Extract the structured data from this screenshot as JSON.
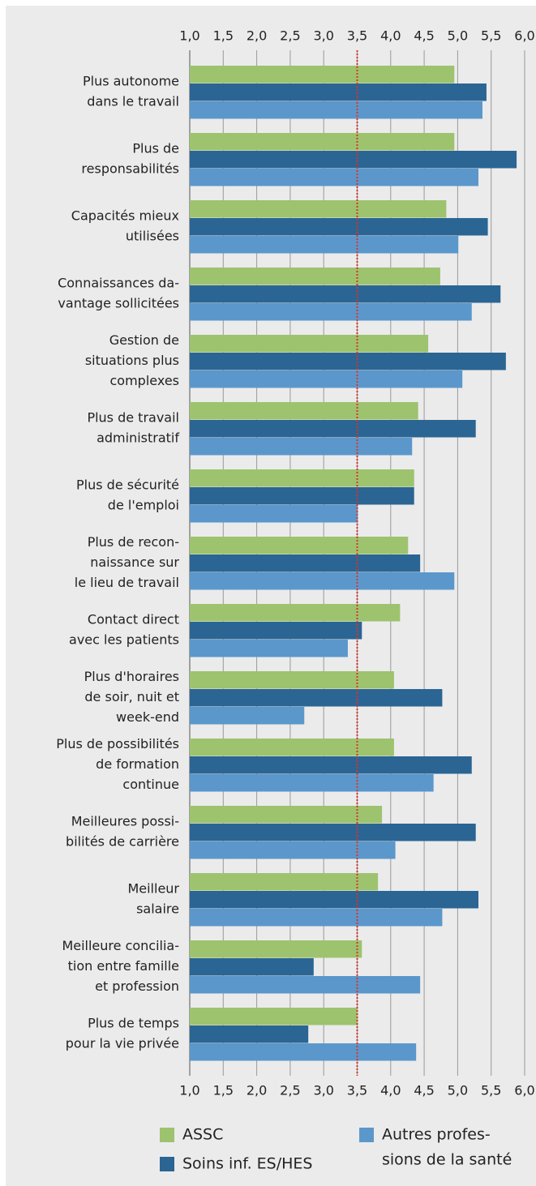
{
  "chart_data": {
    "type": "barh",
    "categories": [
      [
        "Plus autonome",
        "dans le travail"
      ],
      [
        "Plus de",
        "responsabilités"
      ],
      [
        "Capacités mieux",
        "utilisées"
      ],
      [
        "Connaissances da-",
        "vantage sollicitées"
      ],
      [
        "Gestion de",
        "situations plus",
        "complexes"
      ],
      [
        "Plus de travail",
        "administratif"
      ],
      [
        "Plus de sécurité",
        "de l'emploi"
      ],
      [
        "Plus de recon-",
        "naissance sur",
        "le lieu de travail"
      ],
      [
        "Contact direct",
        "avec les patients"
      ],
      [
        "Plus d'horaires",
        "de soir, nuit et",
        "week-end"
      ],
      [
        "Plus de possibilités",
        "de formation",
        "continue"
      ],
      [
        "Meilleures possi-",
        "bilités de carrière"
      ],
      [
        "Meilleur",
        "salaire"
      ],
      [
        "Meilleure concilia-",
        "tion entre famille",
        "et profession"
      ],
      [
        "Plus de temps",
        "pour la vie privée"
      ]
    ],
    "series": [
      {
        "name": [
          "ASSC"
        ],
        "color": "#9dc36e",
        "values": [
          4.95,
          4.95,
          4.83,
          4.74,
          4.56,
          4.41,
          4.35,
          4.26,
          4.14,
          4.05,
          4.05,
          3.87,
          3.81,
          3.57,
          3.51
        ]
      },
      {
        "name": [
          "Soins inf. ES/HES"
        ],
        "color": "#2b6593",
        "values": [
          5.43,
          5.88,
          5.45,
          5.64,
          5.72,
          5.27,
          4.35,
          4.44,
          3.57,
          4.77,
          5.21,
          5.27,
          5.31,
          2.85,
          2.77
        ]
      },
      {
        "name": [
          "Autres profes-",
          "sions de la santé"
        ],
        "color": "#5b97cb",
        "values": [
          5.37,
          5.31,
          5.01,
          5.21,
          5.07,
          4.32,
          3.51,
          4.95,
          3.36,
          2.71,
          4.64,
          4.07,
          4.77,
          4.44,
          4.38
        ]
      }
    ],
    "xlim": [
      1,
      6
    ],
    "xticks": [
      {
        "value": 1,
        "label": "1,0"
      },
      {
        "value": 1.5,
        "label": "1,5"
      },
      {
        "value": 2,
        "label": "2,0"
      },
      {
        "value": 2.5,
        "label": "2,5"
      },
      {
        "value": 3,
        "label": "3,0"
      },
      {
        "value": 3.5,
        "label": "3,5"
      },
      {
        "value": 4,
        "label": "4,0"
      },
      {
        "value": 4.5,
        "label": "4,5"
      },
      {
        "value": 5,
        "label": "5,0"
      },
      {
        "value": 5.5,
        "label": "5,5"
      },
      {
        "value": 6,
        "label": "6,0"
      }
    ],
    "reference": 3.5,
    "reference_color": "#d9342b",
    "grid": true
  }
}
